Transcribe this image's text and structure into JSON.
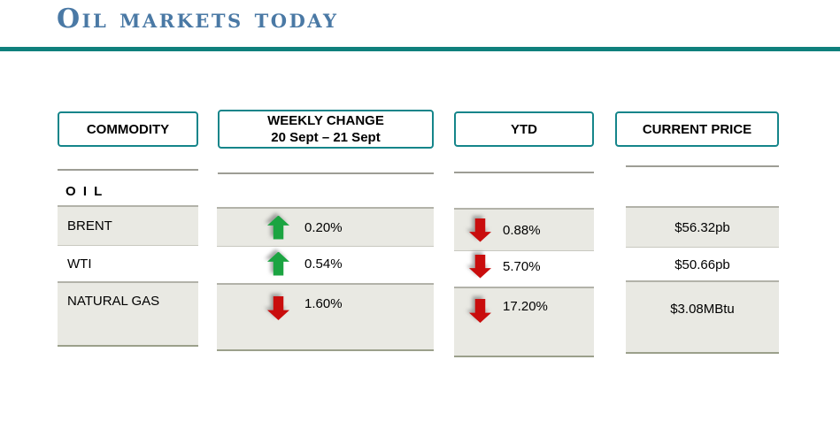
{
  "slide": {
    "title": "Oil markets today"
  },
  "colors": {
    "accent_teal_rule": "#0f807c",
    "header_border_teal": "#15858a",
    "title_blue": "#4a79a5",
    "up_green": "#1ba441",
    "down_red": "#c90d0d",
    "row_gray": "#e9e9e3"
  },
  "table": {
    "headers": {
      "commodity": "COMMODITY",
      "weekly_change_line1": "WEEKLY CHANGE",
      "weekly_change_line2": "20 Sept – 21 Sept",
      "ytd": "YTD",
      "current_price": "CURRENT PRICE"
    },
    "section_label": "O I L",
    "rows": [
      {
        "commodity": "BRENT",
        "weekly_change": "0.20%",
        "weekly_direction": "up",
        "ytd_change": "0.88%",
        "ytd_direction": "down",
        "current_price": "$56.32pb"
      },
      {
        "commodity": "WTI",
        "weekly_change": "0.54%",
        "weekly_direction": "up",
        "ytd_change": "5.70%",
        "ytd_direction": "down",
        "current_price": "$50.66pb"
      },
      {
        "commodity": "NATURAL GAS",
        "weekly_change": "1.60%",
        "weekly_direction": "down",
        "ytd_change": "17.20%",
        "ytd_direction": "down",
        "current_price": "$3.08MBtu"
      }
    ]
  }
}
